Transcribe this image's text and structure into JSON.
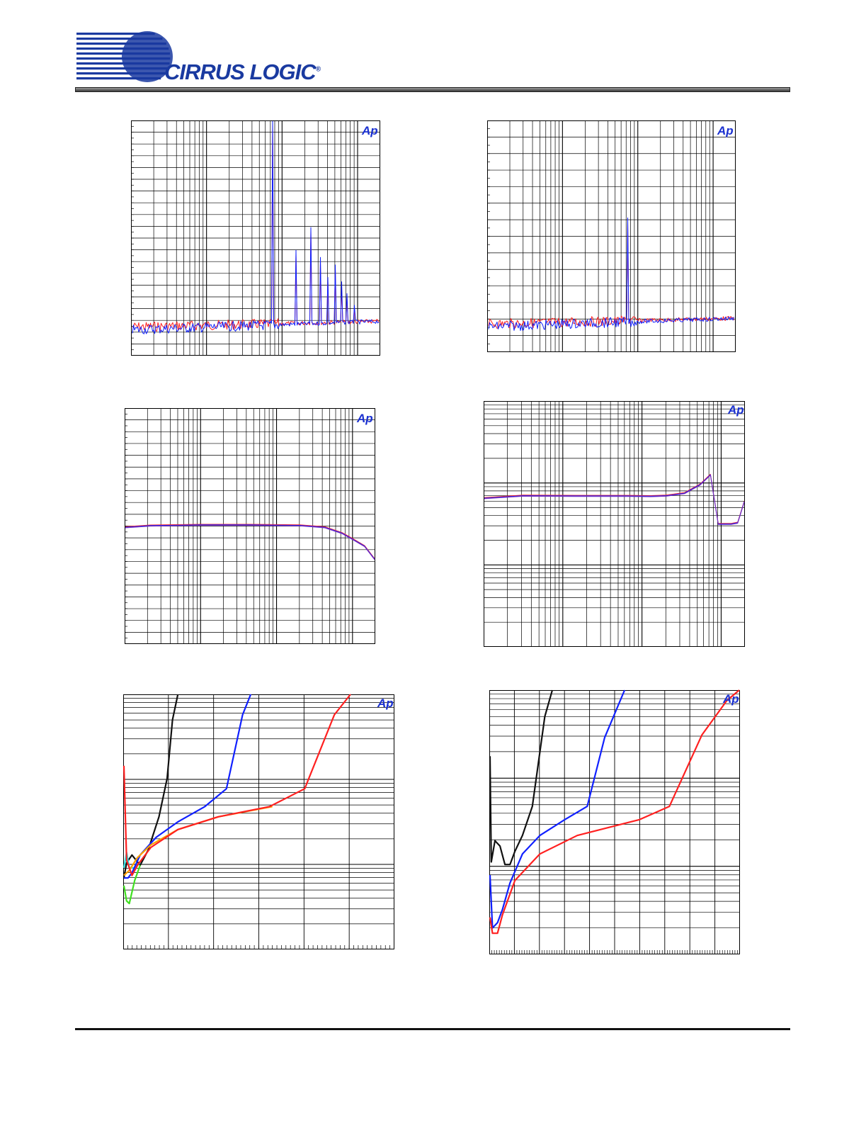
{
  "header": {
    "logo_text": "CIRRUS LOGIC",
    "logo_mark": "®",
    "logo_color": "#1a3aa0"
  },
  "colors": {
    "red": "#ff2020",
    "blue": "#1020ff",
    "purple": "#7a30c0",
    "black": "#111111",
    "cyan": "#30e0e0",
    "green": "#40e020",
    "orange": "#ffa000",
    "ap": "#1a30d0"
  },
  "charts": [
    {
      "id": "fft-1",
      "type": "line",
      "badge": "Ap",
      "x_scale": "log",
      "x_decades": 3.3,
      "hgrid": 20,
      "chart_data": {
        "type": "line",
        "note_axes": "",
        "noise_floor_fraction": 0.86,
        "fundamental_fraction_x": 0.567,
        "peaks": [
          {
            "x": 0.567,
            "level": 0.0
          },
          {
            "x": 0.663,
            "level": 0.55
          },
          {
            "x": 0.72,
            "level": 0.45
          },
          {
            "x": 0.76,
            "level": 0.58
          },
          {
            "x": 0.79,
            "level": 0.66
          },
          {
            "x": 0.82,
            "level": 0.61
          },
          {
            "x": 0.845,
            "level": 0.68
          },
          {
            "x": 0.865,
            "level": 0.73
          },
          {
            "x": 0.895,
            "level": 0.78
          }
        ],
        "series": [
          {
            "color": "red"
          },
          {
            "color": "blue"
          }
        ]
      }
    },
    {
      "id": "fft-2",
      "type": "line",
      "badge": "Ap",
      "x_scale": "log",
      "x_decades": 3.3,
      "hgrid": 14,
      "chart_data": {
        "type": "line",
        "noise_floor_fraction": 0.86,
        "peaks": [
          {
            "x": 0.567,
            "level": 0.42
          }
        ],
        "series": [
          {
            "color": "red"
          },
          {
            "color": "blue"
          }
        ]
      }
    },
    {
      "id": "freq-resp-1",
      "type": "line",
      "badge": "Ap",
      "x_scale": "log",
      "x_decades": 3.3,
      "hgrid": 20,
      "chart_data": {
        "type": "line",
        "x": [
          0.0,
          0.1,
          0.3,
          0.5,
          0.7,
          0.8,
          0.87,
          0.92,
          0.96,
          1.0
        ],
        "y": [
          0.505,
          0.498,
          0.495,
          0.495,
          0.497,
          0.505,
          0.53,
          0.56,
          0.585,
          0.64
        ],
        "series": [
          {
            "color": "red"
          },
          {
            "color": "blue"
          },
          {
            "color": "purple"
          }
        ]
      }
    },
    {
      "id": "freq-resp-2",
      "type": "line",
      "badge": "Ap",
      "x_scale": "log",
      "x_decades": 3.3,
      "y_scale": "log",
      "chart_data": {
        "type": "line",
        "x": [
          0.0,
          0.15,
          0.35,
          0.55,
          0.64,
          0.7,
          0.77,
          0.83,
          0.87,
          0.9,
          0.95,
          0.975,
          1.0
        ],
        "y": [
          0.395,
          0.385,
          0.386,
          0.386,
          0.387,
          0.385,
          0.375,
          0.34,
          0.3,
          0.5,
          0.5,
          0.495,
          0.41
        ],
        "series": [
          {
            "color": "red"
          },
          {
            "color": "blue"
          },
          {
            "color": "purple"
          }
        ]
      }
    },
    {
      "id": "thd-1",
      "type": "line",
      "badge": "Ap",
      "chart_data": {
        "type": "line",
        "series": [
          {
            "color": "black",
            "x": [
              0.0,
              0.01,
              0.03,
              0.06,
              0.09,
              0.13,
              0.16,
              0.18,
              0.2
            ],
            "y": [
              0.28,
              0.34,
              0.37,
              0.33,
              0.39,
              0.52,
              0.67,
              0.9,
              1.0
            ]
          },
          {
            "color": "cyan",
            "x": [
              0.0,
              0.01,
              0.02,
              0.04,
              0.06
            ],
            "y": [
              0.32,
              0.38,
              0.32,
              0.32,
              0.34
            ]
          },
          {
            "color": "green",
            "x": [
              0.0,
              0.01,
              0.02,
              0.04,
              0.06
            ],
            "y": [
              0.25,
              0.19,
              0.18,
              0.27,
              0.33
            ]
          },
          {
            "color": "blue",
            "x": [
              0.0,
              0.015,
              0.03,
              0.06,
              0.12,
              0.2,
              0.3,
              0.38,
              0.44,
              0.47
            ],
            "y": [
              0.28,
              0.28,
              0.3,
              0.37,
              0.44,
              0.5,
              0.56,
              0.63,
              0.92,
              1.0
            ]
          },
          {
            "color": "orange",
            "x": [
              0.0,
              0.02,
              0.05,
              0.1,
              0.2,
              0.35,
              0.55
            ],
            "y": [
              0.29,
              0.31,
              0.36,
              0.41,
              0.47,
              0.52,
              0.56
            ]
          },
          {
            "color": "red",
            "x": [
              0.0,
              0.01,
              0.03,
              0.05,
              0.1,
              0.2,
              0.35,
              0.54,
              0.67,
              0.78,
              0.84
            ],
            "y": [
              0.72,
              0.35,
              0.29,
              0.33,
              0.4,
              0.47,
              0.52,
              0.56,
              0.63,
              0.92,
              1.0
            ]
          }
        ]
      }
    },
    {
      "id": "thd-2",
      "type": "line",
      "badge": "Ap",
      "chart_data": {
        "type": "line",
        "series": [
          {
            "color": "black",
            "x": [
              0.0,
              0.005,
              0.02,
              0.04,
              0.06,
              0.08,
              0.1,
              0.13,
              0.17,
              0.22,
              0.25
            ],
            "y": [
              0.75,
              0.35,
              0.43,
              0.41,
              0.34,
              0.34,
              0.39,
              0.45,
              0.56,
              0.9,
              1.0
            ]
          },
          {
            "color": "blue",
            "x": [
              0.0,
              0.01,
              0.03,
              0.05,
              0.08,
              0.13,
              0.2,
              0.3,
              0.39,
              0.46,
              0.54
            ],
            "y": [
              0.3,
              0.1,
              0.12,
              0.17,
              0.27,
              0.38,
              0.45,
              0.51,
              0.56,
              0.82,
              1.0
            ]
          },
          {
            "color": "red",
            "x": [
              0.0,
              0.01,
              0.03,
              0.05,
              0.1,
              0.2,
              0.35,
              0.6,
              0.72,
              0.85,
              0.95,
              1.0
            ],
            "y": [
              0.14,
              0.08,
              0.08,
              0.15,
              0.28,
              0.38,
              0.45,
              0.51,
              0.56,
              0.83,
              0.96,
              1.0
            ]
          }
        ]
      }
    }
  ]
}
